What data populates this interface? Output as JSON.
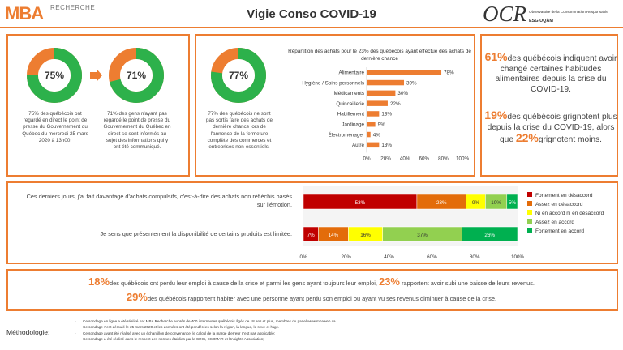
{
  "header": {
    "logo_text": "MBA",
    "logo_sub": "RECHERCHE",
    "title": "Vigie Conso COVID-19",
    "ocr_logo": "OCR",
    "ocr_line1": "Observatoire de la Consommation Responsable",
    "ocr_line2": "ESG UQÀM"
  },
  "donuts": [
    {
      "pct": "75%",
      "caption": "75% des québécois ont regardé en direct le point de presse du Gouvernement du Québec du mercredi 25 mars 2020 à 13h00."
    },
    {
      "pct": "71%",
      "caption": "71% des gens n'ayant pas regardé le point de presse du Gouvernement du Québec en direct se sont informés au sujet des informations qui y ont été communiqué."
    },
    {
      "pct": "77%",
      "caption": "77% des québécois ne sont pas sortis faire des achats de dernière chance lors de l'annonce de la fermeture complète des commerces et entreprises non-essentiels."
    }
  ],
  "colors": {
    "accent": "#ed7d31",
    "donut_fill": "#2db14b",
    "donut_remainder": "#ed7d31"
  },
  "chart_data": [
    {
      "type": "bar",
      "orientation": "horizontal",
      "title": "Répartition des achats pour le 23% des québécois ayant effectué des achats de dernière chance",
      "categories": [
        "Alimentaire",
        "Hygiène / Soins personnels",
        "Médicaments",
        "Quincaillerie",
        "Habillement",
        "Jardinage",
        "Électroménager",
        "Autre"
      ],
      "values": [
        78,
        39,
        30,
        22,
        13,
        9,
        4,
        13
      ],
      "value_labels": [
        "78%",
        "39%",
        "30%",
        "22%",
        "13%",
        "9%",
        "4%",
        "13%"
      ],
      "xlim": [
        0,
        100
      ],
      "xticks": [
        "0%",
        "20%",
        "40%",
        "60%",
        "80%",
        "100%"
      ],
      "bar_color": "#ed7d31"
    },
    {
      "type": "bar",
      "orientation": "horizontal",
      "stacked": true,
      "categories": [
        "Ces derniers jours, j'ai fait davantage d'achats compulsifs, c'est-à-dire des achats non réfléchis basés sur l'émotion.",
        "Je sens que présentement la disponibilité de certains produits est limitée."
      ],
      "series": [
        {
          "name": "Fortement en désaccord",
          "color": "#c00000",
          "values": [
            53,
            7
          ],
          "labels": [
            "53%",
            "7%"
          ]
        },
        {
          "name": "Assez en désaccord",
          "color": "#e36c0a",
          "values": [
            23,
            14
          ],
          "labels": [
            "23%",
            "14%"
          ]
        },
        {
          "name": "Ni en accord ni en désaccord",
          "color": "#ffff00",
          "values": [
            9,
            16
          ],
          "labels": [
            "9%",
            "16%"
          ]
        },
        {
          "name": "Assez en accord",
          "color": "#92d050",
          "values": [
            10,
            37
          ],
          "labels": [
            "10%",
            "37%"
          ]
        },
        {
          "name": "Fortement en accord",
          "color": "#00b050",
          "values": [
            5,
            26
          ],
          "labels": [
            "5%",
            "26%"
          ]
        }
      ],
      "xlim": [
        0,
        100
      ],
      "xticks": [
        "0%",
        "20%",
        "40%",
        "60%",
        "80%",
        "100%"
      ],
      "legend_position": "right"
    }
  ],
  "right_panel": {
    "stat1_num": "61%",
    "stat1_text": "des québécois indiquent avoir changé certaines habitudes alimentaires depuis la crise du COVID-19.",
    "stat2_num": "19%",
    "stat2_text": "des québécois grignotent plus depuis la crise du COVID-19, alors que",
    "stat3_num": "22%",
    "stat3_text": "grignotent moins."
  },
  "bottom": {
    "s1_num": "18%",
    "s1_text": "des québécois ont perdu leur emploi à cause de la crise et parmi les gens ayant toujours leur emploi,",
    "s2_num": "23%",
    "s2_text": "rapportent avoir subi une baisse de leurs revenus.",
    "s3_num": "29%",
    "s3_text": "des québécois rapportent habiter avec une personne ayant perdu son emploi ou ayant vu ses revenus diminuer à cause de la crise."
  },
  "methodology": {
    "label": "Méthodologie:",
    "items": [
      "Ce sondage en ligne a été réalisé par MBA Recherche auprès de 400 internautes québécois âgés de 18 ans et plus, membres du panel www.mbaweb.ca",
      "Ce sondage s'est déroulé le 25 mars 2020 et les données ont été pondérées selon la région, la langue, le sexe et l'âge.",
      "Ce sondage ayant été réalisé avec un échantillon de convenance, le calcul de la marge d'erreur n'est pas applicable;",
      "Ce sondage a été réalisé dans le respect des normes établies par la CRIC, ESOMAR et l'Insights Association;"
    ]
  }
}
